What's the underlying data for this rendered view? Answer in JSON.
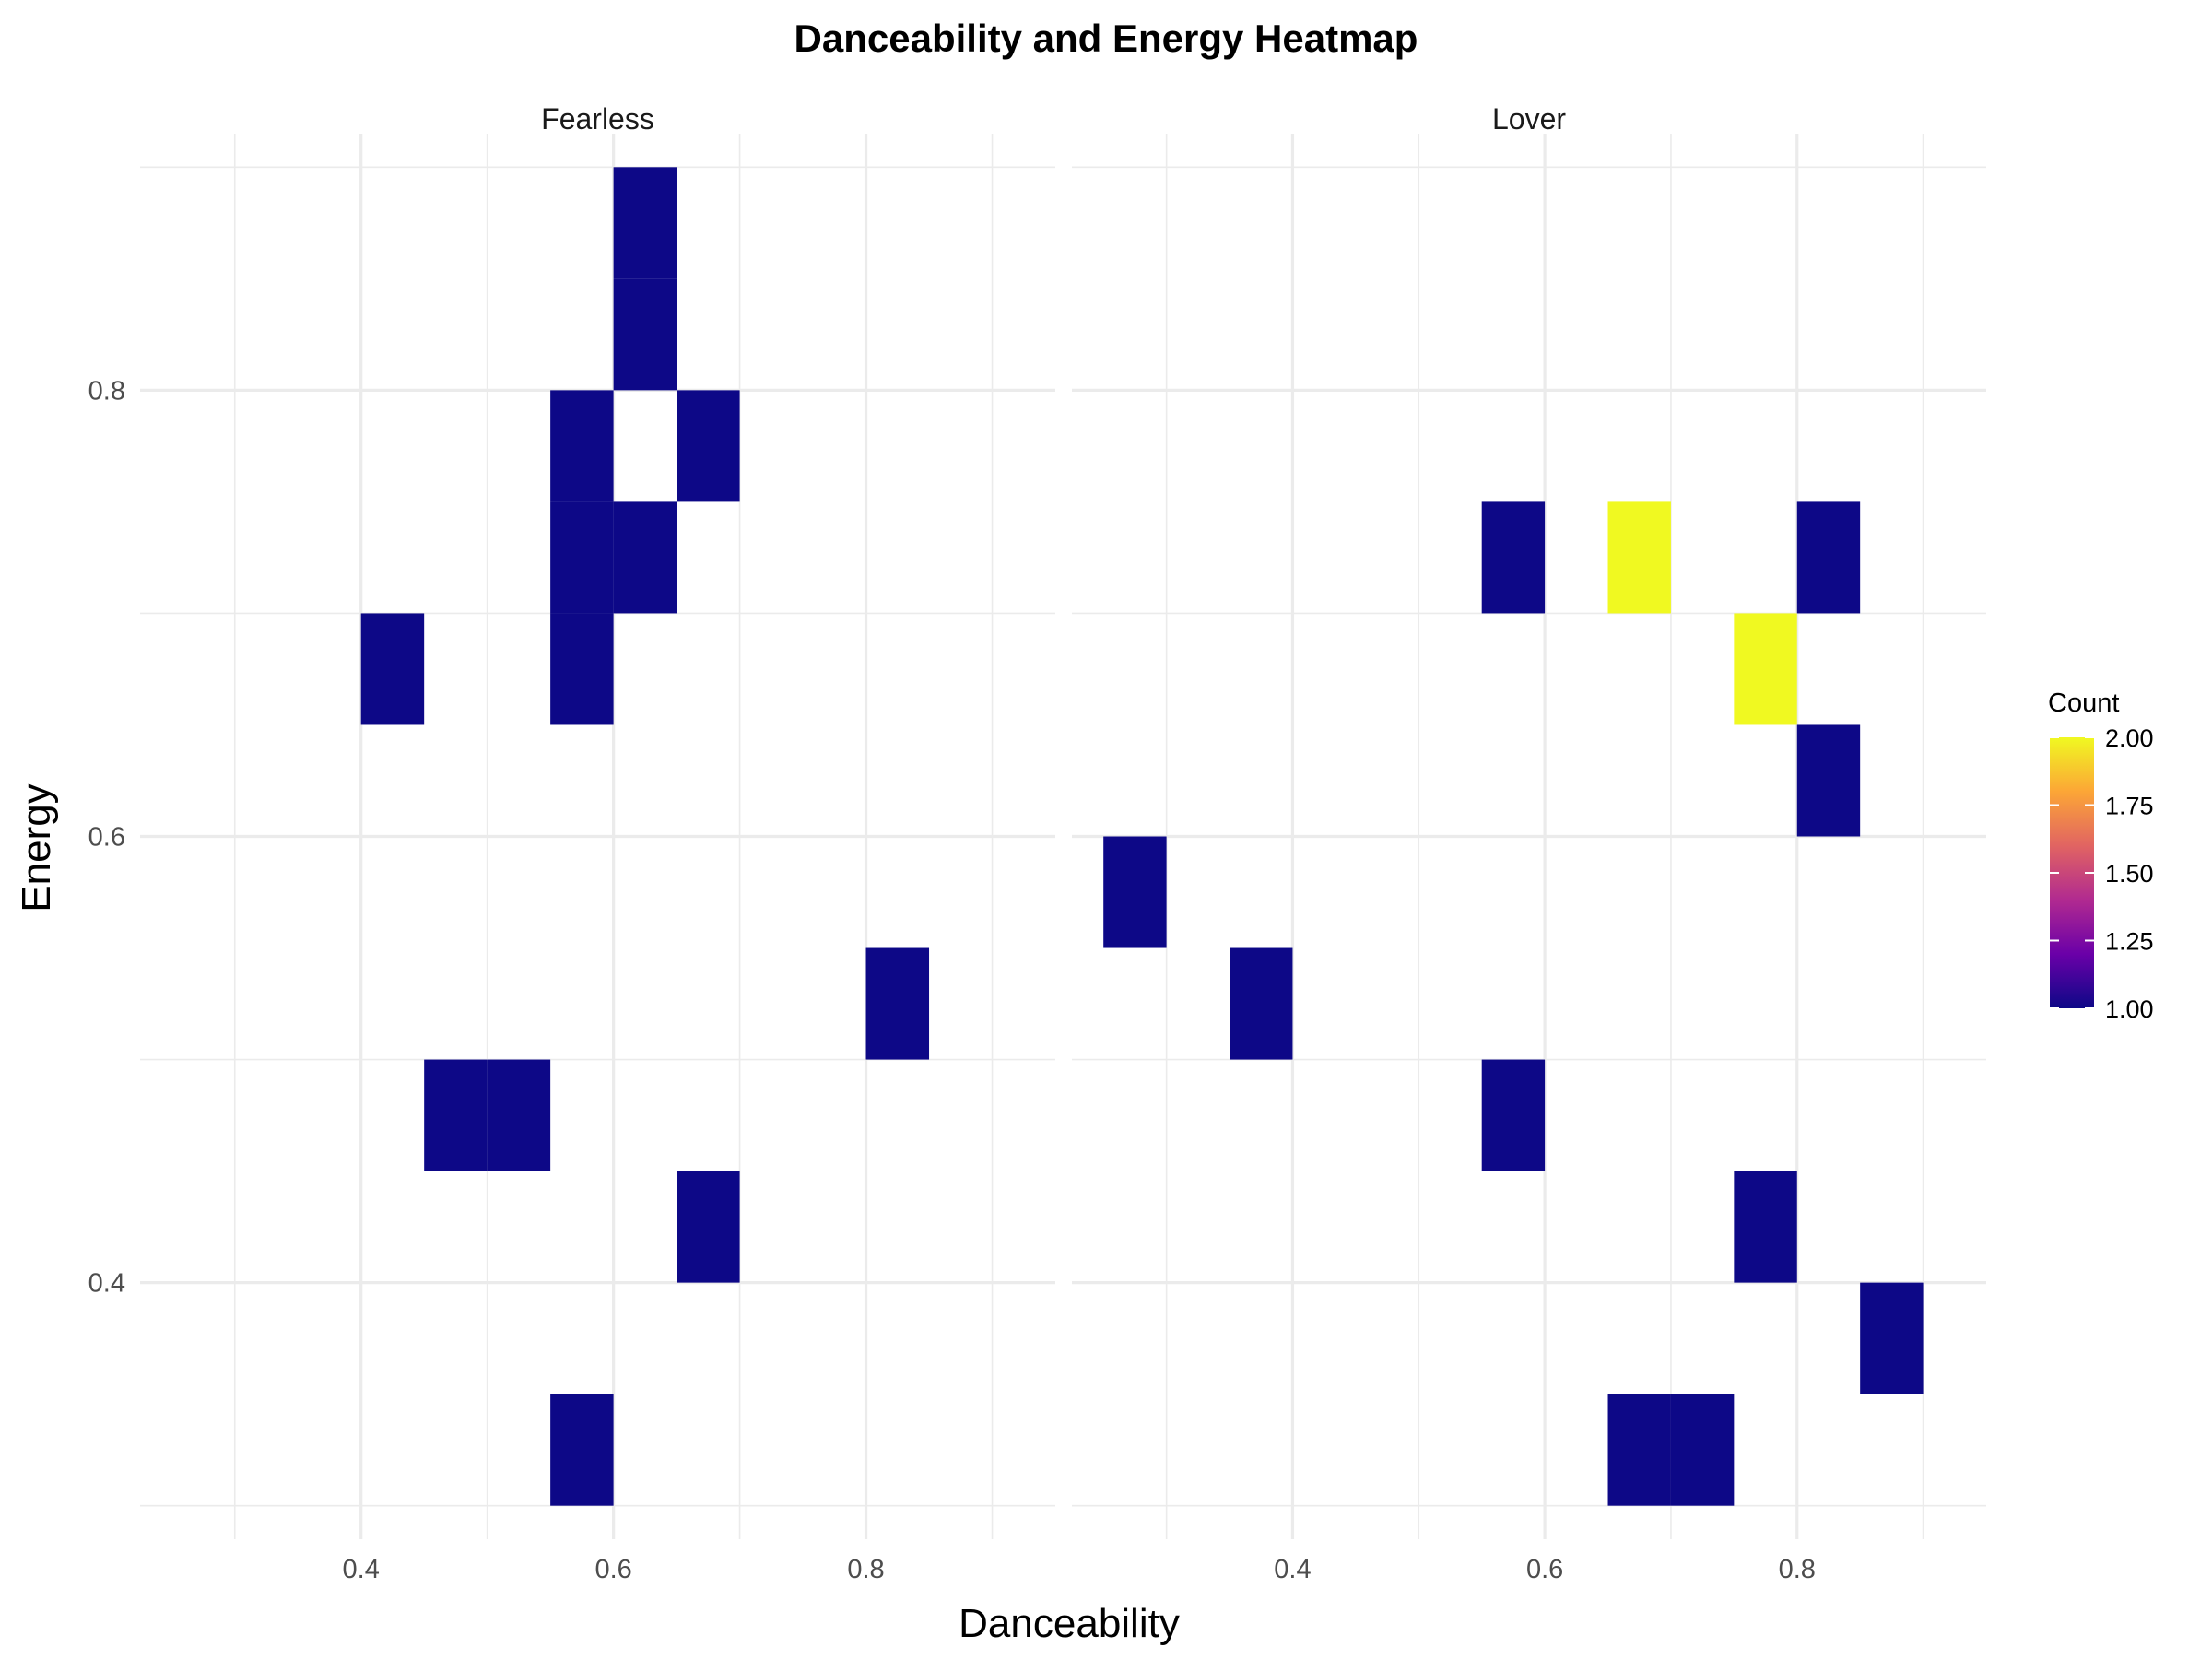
{
  "chart_data": {
    "type": "heatmap",
    "title": "Danceability and Energy Heatmap",
    "xlabel": "Danceability",
    "ylabel": "Energy",
    "xlim": [
      0.225,
      0.95
    ],
    "ylim": [
      0.285,
      0.915
    ],
    "x_ticks": [
      0.4,
      0.6,
      0.8
    ],
    "x_tick_labels": [
      "0.4",
      "0.6",
      "0.8"
    ],
    "y_ticks": [
      0.4,
      0.6,
      0.8
    ],
    "y_tick_labels": [
      "0.4",
      "0.6",
      "0.8"
    ],
    "bin_width": 0.05,
    "bin_height": 0.05,
    "legend": {
      "title": "Count",
      "position": "right",
      "min": 1.0,
      "max": 2.0,
      "ticks": [
        1.0,
        1.25,
        1.5,
        1.75,
        2.0
      ],
      "tick_labels": [
        "1.00",
        "1.25",
        "1.50",
        "1.75",
        "2.00"
      ],
      "colors": [
        "#0d0887",
        "#6a00a8",
        "#b12a90",
        "#e16462",
        "#fca636",
        "#f0f921"
      ]
    },
    "grid": true,
    "panels": [
      {
        "name": "Fearless",
        "cells": [
          {
            "x": 0.625,
            "y": 0.875,
            "count": 1
          },
          {
            "x": 0.625,
            "y": 0.825,
            "count": 1
          },
          {
            "x": 0.575,
            "y": 0.775,
            "count": 1
          },
          {
            "x": 0.675,
            "y": 0.775,
            "count": 1
          },
          {
            "x": 0.575,
            "y": 0.725,
            "count": 1
          },
          {
            "x": 0.625,
            "y": 0.725,
            "count": 1
          },
          {
            "x": 0.425,
            "y": 0.675,
            "count": 1
          },
          {
            "x": 0.575,
            "y": 0.675,
            "count": 1
          },
          {
            "x": 0.825,
            "y": 0.525,
            "count": 1
          },
          {
            "x": 0.475,
            "y": 0.475,
            "count": 1
          },
          {
            "x": 0.525,
            "y": 0.475,
            "count": 1
          },
          {
            "x": 0.675,
            "y": 0.425,
            "count": 1
          },
          {
            "x": 0.575,
            "y": 0.325,
            "count": 1
          }
        ]
      },
      {
        "name": "Lover",
        "cells": [
          {
            "x": 0.575,
            "y": 0.725,
            "count": 1
          },
          {
            "x": 0.675,
            "y": 0.725,
            "count": 2
          },
          {
            "x": 0.825,
            "y": 0.725,
            "count": 1
          },
          {
            "x": 0.775,
            "y": 0.675,
            "count": 2
          },
          {
            "x": 0.825,
            "y": 0.625,
            "count": 1
          },
          {
            "x": 0.275,
            "y": 0.575,
            "count": 1
          },
          {
            "x": 0.375,
            "y": 0.525,
            "count": 1
          },
          {
            "x": 0.575,
            "y": 0.475,
            "count": 1
          },
          {
            "x": 0.775,
            "y": 0.425,
            "count": 1
          },
          {
            "x": 0.875,
            "y": 0.375,
            "count": 1
          },
          {
            "x": 0.675,
            "y": 0.325,
            "count": 1
          },
          {
            "x": 0.725,
            "y": 0.325,
            "count": 1
          }
        ]
      }
    ]
  }
}
